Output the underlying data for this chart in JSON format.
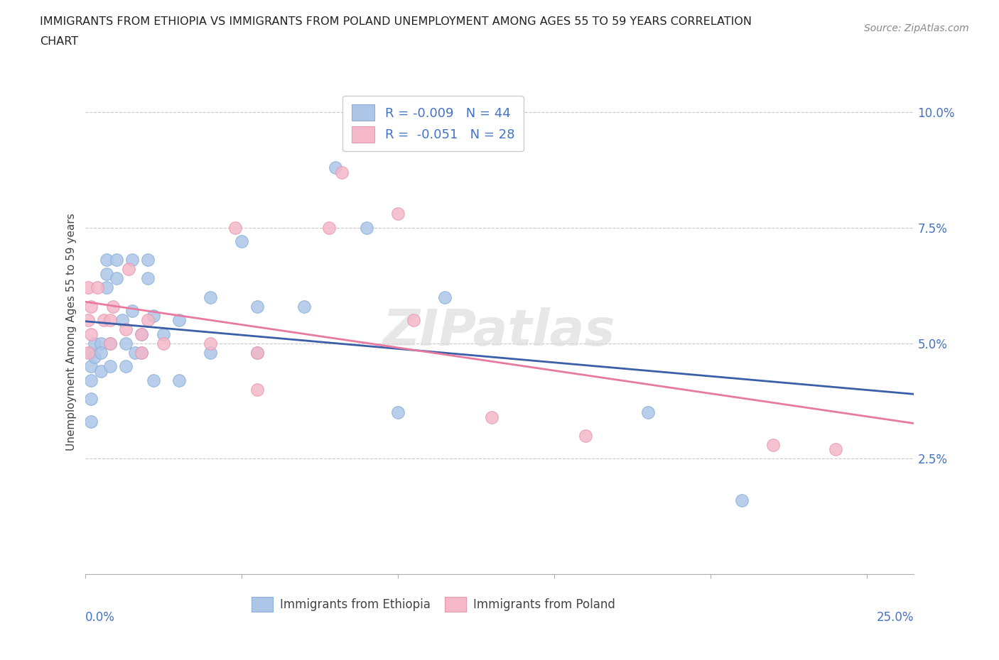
{
  "title_line1": "IMMIGRANTS FROM ETHIOPIA VS IMMIGRANTS FROM POLAND UNEMPLOYMENT AMONG AGES 55 TO 59 YEARS CORRELATION",
  "title_line2": "CHART",
  "source": "Source: ZipAtlas.com",
  "ylabel": "Unemployment Among Ages 55 to 59 years",
  "yticks": [
    0.0,
    0.025,
    0.05,
    0.075,
    0.1
  ],
  "ytick_labels": [
    "",
    "2.5%",
    "5.0%",
    "7.5%",
    "10.0%"
  ],
  "xticks": [
    0.0,
    0.05,
    0.1,
    0.15,
    0.2,
    0.25
  ],
  "xlim": [
    0.0,
    0.265
  ],
  "ylim": [
    0.0,
    0.105
  ],
  "ethiopia_color": "#adc6e8",
  "poland_color": "#f4b8c8",
  "ethiopia_line_color": "#3a5fa8",
  "poland_line_color": "#e87aa0",
  "legend_ethiopia_label": "R = -0.009   N = 44",
  "legend_poland_label": "R =  -0.051   N = 28",
  "legend_ethiopia_color": "#adc6e8",
  "legend_poland_color": "#f4b8c8",
  "watermark": "ZIPatlas",
  "ethiopia_x": [
    0.002,
    0.002,
    0.002,
    0.002,
    0.002,
    0.003,
    0.003,
    0.005,
    0.005,
    0.005,
    0.007,
    0.007,
    0.007,
    0.008,
    0.008,
    0.01,
    0.01,
    0.012,
    0.013,
    0.013,
    0.015,
    0.015,
    0.016,
    0.018,
    0.018,
    0.02,
    0.02,
    0.022,
    0.022,
    0.025,
    0.03,
    0.03,
    0.04,
    0.04,
    0.05,
    0.055,
    0.055,
    0.07,
    0.08,
    0.09,
    0.1,
    0.115,
    0.18,
    0.21
  ],
  "ethiopia_y": [
    0.048,
    0.045,
    0.042,
    0.038,
    0.033,
    0.05,
    0.047,
    0.05,
    0.048,
    0.044,
    0.068,
    0.065,
    0.062,
    0.05,
    0.045,
    0.068,
    0.064,
    0.055,
    0.05,
    0.045,
    0.068,
    0.057,
    0.048,
    0.052,
    0.048,
    0.068,
    0.064,
    0.056,
    0.042,
    0.052,
    0.055,
    0.042,
    0.06,
    0.048,
    0.072,
    0.058,
    0.048,
    0.058,
    0.088,
    0.075,
    0.035,
    0.06,
    0.035,
    0.016
  ],
  "poland_x": [
    0.001,
    0.001,
    0.001,
    0.002,
    0.002,
    0.004,
    0.006,
    0.008,
    0.008,
    0.009,
    0.013,
    0.014,
    0.018,
    0.018,
    0.02,
    0.025,
    0.04,
    0.048,
    0.055,
    0.055,
    0.078,
    0.082,
    0.1,
    0.105,
    0.13,
    0.16,
    0.22,
    0.24
  ],
  "poland_y": [
    0.062,
    0.055,
    0.048,
    0.058,
    0.052,
    0.062,
    0.055,
    0.055,
    0.05,
    0.058,
    0.053,
    0.066,
    0.052,
    0.048,
    0.055,
    0.05,
    0.05,
    0.075,
    0.048,
    0.04,
    0.075,
    0.087,
    0.078,
    0.055,
    0.034,
    0.03,
    0.028,
    0.027
  ]
}
